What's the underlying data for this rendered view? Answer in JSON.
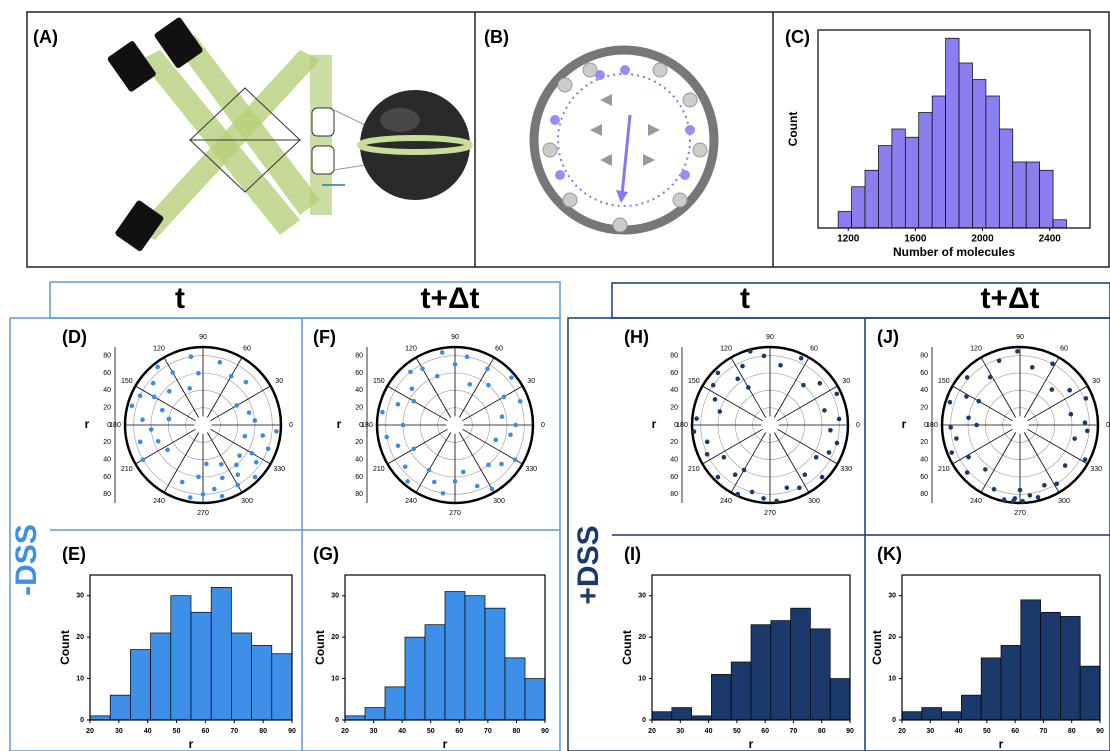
{
  "diagrams": [
    {
      "panel": "(A)"
    },
    {
      "panel": "(B)"
    }
  ],
  "column_headers": [
    "t",
    "t+Δt",
    "t",
    "t+Δt"
  ],
  "group_labels": [
    "-DSS",
    "+DSS"
  ],
  "chart_data": [
    {
      "type": "histogram",
      "panel": "(C)",
      "color": "#8b7ff0",
      "xlabel": "Number of molecules",
      "ylabel": "Count",
      "bins": [
        1140,
        1220,
        1300,
        1380,
        1460,
        1540,
        1620,
        1700,
        1780,
        1860,
        1940,
        2020,
        2100,
        2180,
        2260,
        2340,
        2420,
        2500
      ],
      "values": [
        2,
        5,
        7,
        10,
        12,
        11,
        14,
        16,
        23,
        20,
        18,
        16,
        12,
        8,
        8,
        7,
        1
      ],
      "xlim": [
        1020,
        2640
      ],
      "xticks": [
        1200,
        1600,
        2000,
        2400
      ],
      "ylim": [
        0,
        24
      ]
    },
    {
      "type": "polar-scatter",
      "panel": "(D)",
      "color": "#3a8de0",
      "ylabel": "r",
      "ylim": [
        0,
        90
      ],
      "yticks": [
        0,
        20,
        40,
        60,
        80
      ],
      "thetaticks": [
        0,
        30,
        60,
        90,
        120,
        150,
        180,
        210,
        240,
        270,
        300,
        330
      ],
      "x": [
        95,
        100,
        110,
        120,
        128,
        135,
        140,
        150,
        155,
        160,
        165,
        170,
        175,
        185,
        195,
        200,
        210,
        215,
        250,
        260,
        265,
        270,
        275,
        280,
        285,
        290,
        295,
        300,
        305,
        310,
        315,
        320,
        325,
        330,
        340,
        345,
        350,
        355,
        5,
        15,
        30,
        45,
        60,
        75
      ],
      "values": [
        60,
        80,
        45,
        70,
        85,
        55,
        75,
        65,
        80,
        50,
        85,
        40,
        70,
        60,
        75,
        55,
        80,
        50,
        70,
        85,
        60,
        80,
        45,
        75,
        85,
        65,
        50,
        80,
        70,
        60,
        85,
        55,
        75,
        65,
        80,
        50,
        70,
        85,
        60,
        55,
        45,
        70,
        65,
        75
      ]
    },
    {
      "type": "histogram",
      "panel": "(E)",
      "color": "#3d8fe8",
      "xlabel": "r",
      "ylabel": "Count",
      "bins": [
        20,
        27,
        34,
        41,
        48,
        55,
        62,
        69,
        76,
        83,
        90
      ],
      "values": [
        1,
        6,
        17,
        21,
        30,
        26,
        32,
        21,
        18,
        16
      ],
      "xlim": [
        20,
        90
      ],
      "xticks": [
        20,
        30,
        40,
        50,
        60,
        70,
        80,
        90
      ],
      "ylim": [
        0,
        35
      ],
      "yticks": [
        0,
        10,
        20,
        30
      ]
    },
    {
      "type": "polar-scatter",
      "panel": "(F)",
      "color": "#3a8de0",
      "ylabel": "r",
      "ylim": [
        0,
        90
      ],
      "yticks": [
        0,
        20,
        40,
        60,
        80
      ],
      "thetaticks": [
        0,
        30,
        60,
        90,
        120,
        150,
        180,
        210,
        240,
        270,
        300,
        330
      ],
      "x": [
        0,
        10,
        20,
        30,
        40,
        50,
        60,
        70,
        80,
        90,
        100,
        110,
        120,
        130,
        140,
        150,
        160,
        170,
        180,
        190,
        200,
        210,
        220,
        230,
        240,
        250,
        260,
        270,
        280,
        290,
        300,
        310,
        320,
        330,
        340,
        350
      ],
      "values": [
        70,
        55,
        80,
        65,
        85,
        60,
        75,
        50,
        80,
        70,
        85,
        60,
        75,
        80,
        65,
        55,
        70,
        85,
        60,
        80,
        70,
        55,
        75,
        85,
        60,
        70,
        80,
        65,
        55,
        75,
        85,
        60,
        70,
        80,
        50,
        65
      ]
    },
    {
      "type": "histogram",
      "panel": "(G)",
      "color": "#3d8fe8",
      "xlabel": "r",
      "ylabel": "Count",
      "bins": [
        20,
        27,
        34,
        41,
        48,
        55,
        62,
        69,
        76,
        83,
        90
      ],
      "values": [
        1,
        3,
        8,
        20,
        23,
        31,
        30,
        27,
        15,
        10
      ],
      "xlim": [
        20,
        90
      ],
      "xticks": [
        20,
        30,
        40,
        50,
        60,
        70,
        80,
        90
      ],
      "ylim": [
        0,
        35
      ],
      "yticks": [
        0,
        10,
        20,
        30
      ]
    },
    {
      "type": "polar-scatter",
      "panel": "(H)",
      "color": "#1b3a6b",
      "ylabel": "r",
      "ylim": [
        0,
        90
      ],
      "yticks": [
        0,
        20,
        40,
        60,
        80
      ],
      "thetaticks": [
        0,
        30,
        60,
        90,
        120,
        150,
        180,
        210,
        240,
        270,
        300,
        330
      ],
      "x": [
        5,
        15,
        25,
        40,
        50,
        65,
        80,
        95,
        105,
        115,
        125,
        135,
        145,
        155,
        165,
        175,
        185,
        195,
        205,
        215,
        225,
        235,
        245,
        255,
        265,
        275,
        285,
        295,
        305,
        315,
        325,
        335,
        345,
        355,
        120,
        240
      ],
      "values": [
        80,
        65,
        85,
        75,
        60,
        85,
        70,
        80,
        88,
        75,
        65,
        85,
        80,
        70,
        60,
        85,
        88,
        75,
        80,
        65,
        85,
        70,
        88,
        80,
        85,
        88,
        75,
        80,
        70,
        85,
        65,
        75,
        80,
        70,
        50,
        60
      ]
    },
    {
      "type": "histogram",
      "panel": "(I)",
      "color": "#1b3a6b",
      "xlabel": "r",
      "ylabel": "Count",
      "bins": [
        20,
        27,
        34,
        41,
        48,
        55,
        62,
        69,
        76,
        83,
        90
      ],
      "values": [
        2,
        3,
        1,
        11,
        14,
        23,
        24,
        27,
        22,
        10
      ],
      "xlim": [
        20,
        90
      ],
      "xticks": [
        20,
        30,
        40,
        50,
        60,
        70,
        80,
        90
      ],
      "ylim": [
        0,
        35
      ],
      "yticks": [
        0,
        10,
        20,
        30
      ]
    },
    {
      "type": "polar-scatter",
      "panel": "(J)",
      "color": "#1b3a6b",
      "ylabel": "r",
      "ylim": [
        0,
        90
      ],
      "yticks": [
        0,
        20,
        40,
        60,
        80
      ],
      "thetaticks": [
        0,
        30,
        60,
        90,
        120,
        150,
        180,
        210,
        240,
        270,
        300,
        330
      ],
      "x": [
        2,
        12,
        22,
        35,
        48,
        62,
        78,
        92,
        108,
        122,
        138,
        152,
        162,
        172,
        182,
        192,
        202,
        212,
        222,
        232,
        248,
        258,
        266,
        272,
        278,
        284,
        292,
        302,
        318,
        332,
        346,
        355,
        150,
        180,
        270,
        265
      ],
      "values": [
        75,
        60,
        82,
        70,
        55,
        80,
        68,
        85,
        78,
        65,
        82,
        70,
        85,
        60,
        80,
        75,
        85,
        70,
        82,
        65,
        80,
        88,
        85,
        88,
        82,
        86,
        75,
        80,
        70,
        85,
        65,
        78,
        55,
        50,
        75,
        88
      ]
    },
    {
      "type": "histogram",
      "panel": "(K)",
      "color": "#1b3a6b",
      "xlabel": "r",
      "ylabel": "Count",
      "bins": [
        20,
        27,
        34,
        41,
        48,
        55,
        62,
        69,
        76,
        83,
        90
      ],
      "values": [
        2,
        3,
        2,
        6,
        15,
        18,
        29,
        26,
        25,
        13
      ],
      "xlim": [
        20,
        90
      ],
      "xticks": [
        20,
        30,
        40,
        50,
        60,
        70,
        80,
        90
      ],
      "ylim": [
        0,
        35
      ],
      "yticks": [
        0,
        10,
        20,
        30
      ]
    }
  ]
}
